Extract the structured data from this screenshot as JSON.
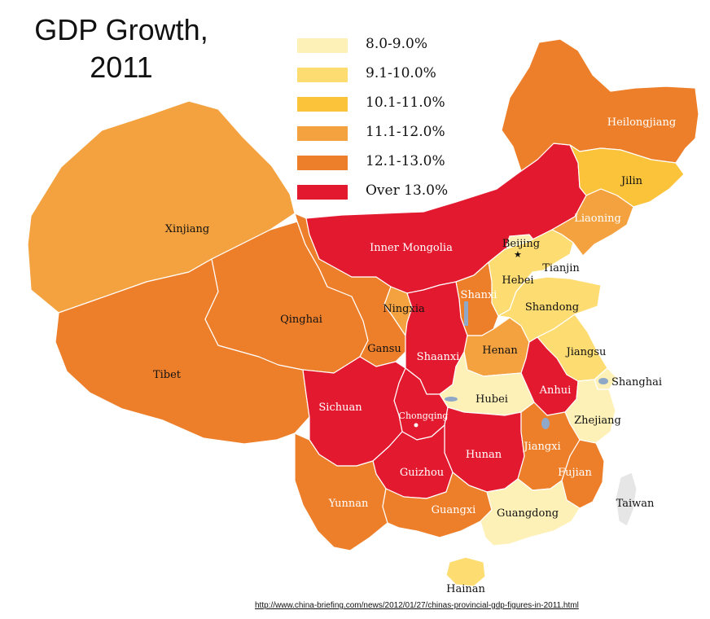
{
  "title": {
    "line1": "GDP Growth,",
    "line2": "2011"
  },
  "legend": [
    {
      "label": "8.0-9.0%",
      "color": "#fdf1b8"
    },
    {
      "label": "9.1-10.0%",
      "color": "#fddc72"
    },
    {
      "label": "10.1-11.0%",
      "color": "#fbc33a"
    },
    {
      "label": "11.1-12.0%",
      "color": "#f4a23f"
    },
    {
      "label": "12.1-13.0%",
      "color": "#ee7f2a"
    },
    {
      "label": "Over 13.0%",
      "color": "#e31a2f"
    }
  ],
  "regions": {
    "xinjiang": {
      "label": "Xinjiang",
      "band": 3
    },
    "tibet": {
      "label": "Tibet",
      "band": 4
    },
    "qinghai": {
      "label": "Qinghai",
      "band": 4
    },
    "gansu": {
      "label": "Gansu",
      "band": 4
    },
    "inner_mongolia": {
      "label": "Inner Mongolia",
      "band": 5
    },
    "ningxia": {
      "label": "Ningxia",
      "band": 3
    },
    "shaanxi": {
      "label": "Shaanxi",
      "band": 5
    },
    "shanxi": {
      "label": "Shanxi",
      "band": 4
    },
    "sichuan": {
      "label": "Sichuan",
      "band": 5
    },
    "chongqing": {
      "label": "Chongqing",
      "band": 5
    },
    "yunnan": {
      "label": "Yunnan",
      "band": 4
    },
    "guizhou": {
      "label": "Guizhou",
      "band": 5
    },
    "guangxi": {
      "label": "Guangxi",
      "band": 4
    },
    "hunan": {
      "label": "Hunan",
      "band": 5
    },
    "hubei": {
      "label": "Hubei",
      "band": 0
    },
    "henan": {
      "label": "Henan",
      "band": 3
    },
    "hebei": {
      "label": "Hebei",
      "band": 1
    },
    "beijing": {
      "label": "Beijing",
      "band": 0
    },
    "tianjin": {
      "label": "Tianjin",
      "band": 5
    },
    "shandong": {
      "label": "Shandong",
      "band": 1
    },
    "jiangsu": {
      "label": "Jiangsu",
      "band": 1
    },
    "shanghai": {
      "label": "Shanghai",
      "band": 0
    },
    "anhui": {
      "label": "Anhui",
      "band": 5
    },
    "zhejiang": {
      "label": "Zhejiang",
      "band": 0
    },
    "jiangxi": {
      "label": "Jiangxi",
      "band": 4
    },
    "fujian": {
      "label": "Fujian",
      "band": 4
    },
    "guangdong": {
      "label": "Guangdong",
      "band": 0
    },
    "hainan": {
      "label": "Hainan",
      "band": 1
    },
    "taiwan": {
      "label": "Taiwan",
      "band": null
    },
    "liaoning": {
      "label": "Liaoning",
      "band": 3
    },
    "jilin": {
      "label": "Jilin",
      "band": 2
    },
    "heilongjiang": {
      "label": "Heilongjiang",
      "band": 4
    }
  },
  "source_url": "http://www.china-briefing.com/news/2012/01/27/chinas-provincial-gdp-figures-in-2011.html"
}
